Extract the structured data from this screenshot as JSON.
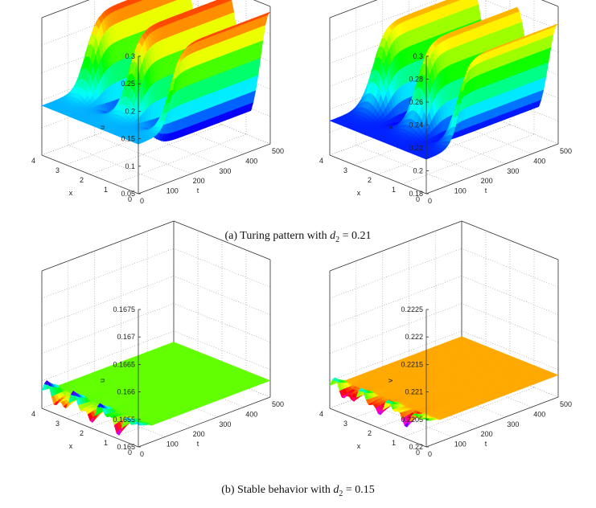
{
  "captions": {
    "a": {
      "prefix": "(a)  Turing pattern with ",
      "var": "d",
      "sub": "2",
      "suffix": " = 0.21"
    },
    "b": {
      "prefix": "(b)  Stable behavior with ",
      "var": "d",
      "sub": "2",
      "suffix": " = 0.15"
    }
  },
  "chart_data": [
    {
      "id": "a-u",
      "type": "surface",
      "zlabel": "u",
      "xlabel": "x",
      "ylabel": "t",
      "xlim": [
        0,
        4
      ],
      "tlim": [
        0,
        500
      ],
      "zlim": [
        0.05,
        0.3
      ],
      "x_ticks": [
        "0",
        "1",
        "2",
        "3",
        "4"
      ],
      "t_ticks": [
        "0",
        "100",
        "200",
        "300",
        "400",
        "500"
      ],
      "z_ticks": [
        "0.05",
        "0.1",
        "0.15",
        "0.2",
        "0.25",
        "0.3"
      ],
      "grid": true,
      "colormap": "hsv",
      "pattern": {
        "kind": "turing",
        "base": 0.14,
        "high": 0.29,
        "low": 0.07,
        "t_onset": 130,
        "stripes": [
          3.5,
          1.7,
          0.0
        ],
        "stripe_width": 1.0
      }
    },
    {
      "id": "a-v",
      "type": "surface",
      "zlabel": "v",
      "xlabel": "x",
      "ylabel": "t",
      "xlim": [
        0,
        4
      ],
      "tlim": [
        0,
        500
      ],
      "zlim": [
        0.18,
        0.3
      ],
      "x_ticks": [
        "0",
        "1",
        "2",
        "3",
        "4"
      ],
      "t_ticks": [
        "0",
        "100",
        "200",
        "300",
        "400",
        "500"
      ],
      "z_ticks": [
        "0.18",
        "0.2",
        "0.22",
        "0.24",
        "0.26",
        "0.28",
        "0.3"
      ],
      "grid": true,
      "colormap": "hsv",
      "pattern": {
        "kind": "turing",
        "base": 0.21,
        "high": 0.285,
        "low": 0.195,
        "t_onset": 130,
        "stripes": [
          3.5,
          1.7,
          0.0
        ],
        "stripe_width": 1.0
      }
    },
    {
      "id": "b-u",
      "type": "surface",
      "zlabel": "u",
      "xlabel": "x",
      "ylabel": "t",
      "xlim": [
        0,
        4
      ],
      "tlim": [
        0,
        500
      ],
      "zlim": [
        0.165,
        0.1675
      ],
      "x_ticks": [
        "0",
        "1",
        "2",
        "3",
        "4"
      ],
      "t_ticks": [
        "0",
        "100",
        "200",
        "300",
        "400",
        "500"
      ],
      "z_ticks": [
        "0.165",
        "0.1655",
        "0.166",
        "0.1665",
        "0.167",
        "0.1675"
      ],
      "grid": true,
      "colormap": "hsv",
      "pattern": {
        "kind": "stable",
        "steady": 0.1653,
        "amp": 0.00025,
        "t_decay": 40
      }
    },
    {
      "id": "b-v",
      "type": "surface",
      "zlabel": "v",
      "xlabel": "x",
      "ylabel": "t",
      "xlim": [
        0,
        4
      ],
      "tlim": [
        0,
        500
      ],
      "zlim": [
        0.22,
        0.2225
      ],
      "x_ticks": [
        "0",
        "1",
        "2",
        "3",
        "4"
      ],
      "t_ticks": [
        "0",
        "100",
        "200",
        "300",
        "400",
        "500"
      ],
      "z_ticks": [
        "0.22",
        "0.2205",
        "0.221",
        "0.2215",
        "0.222",
        "0.2225"
      ],
      "grid": true,
      "colormap": "hsv",
      "pattern": {
        "kind": "stable",
        "steady": 0.2204,
        "amp": 0.0002,
        "t_decay": 40
      }
    }
  ]
}
